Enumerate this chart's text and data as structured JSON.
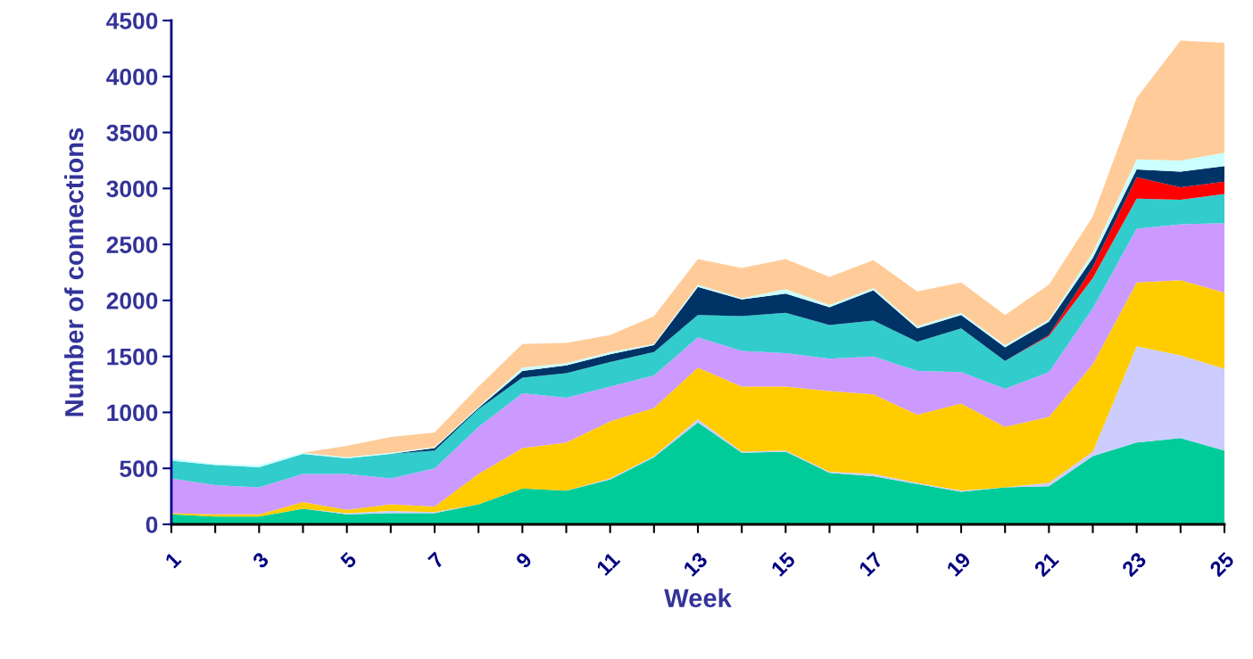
{
  "chart_data": {
    "type": "area",
    "stacked": true,
    "xlabel": "Week",
    "ylabel": "Number of connections",
    "categories": [
      "1",
      null,
      "3",
      null,
      "5",
      null,
      "7",
      null,
      "9",
      null,
      "11",
      null,
      "13",
      null,
      "15",
      null,
      "17",
      null,
      "19",
      null,
      "21",
      null,
      "23",
      null,
      "25"
    ],
    "ylim": [
      0,
      4500
    ],
    "yticks": [
      0,
      500,
      1000,
      1500,
      2000,
      2500,
      3000,
      3500,
      4000,
      4500
    ],
    "grid": false,
    "legend": false,
    "series": [
      {
        "color": "#00cc99",
        "values": [
          90,
          70,
          70,
          140,
          90,
          100,
          100,
          180,
          320,
          300,
          400,
          600,
          910,
          640,
          650,
          460,
          430,
          360,
          290,
          330,
          340,
          610,
          730,
          770,
          660
        ]
      },
      {
        "color": "#ccccff",
        "values": [
          0,
          0,
          0,
          0,
          10,
          20,
          10,
          0,
          0,
          0,
          10,
          10,
          30,
          10,
          10,
          10,
          20,
          10,
          10,
          0,
          30,
          40,
          860,
          740,
          730
        ]
      },
      {
        "color": "#ffcc00",
        "values": [
          10,
          20,
          20,
          60,
          30,
          60,
          50,
          270,
          360,
          430,
          510,
          430,
          460,
          580,
          570,
          720,
          710,
          610,
          780,
          540,
          590,
          780,
          570,
          670,
          680
        ]
      },
      {
        "color": "#cc99ff",
        "values": [
          310,
          260,
          240,
          250,
          320,
          230,
          340,
          420,
          490,
          400,
          310,
          290,
          270,
          320,
          300,
          290,
          340,
          390,
          280,
          340,
          400,
          500,
          480,
          500,
          620
        ]
      },
      {
        "color": "#33cccc",
        "values": [
          160,
          180,
          180,
          180,
          140,
          220,
          160,
          160,
          140,
          220,
          220,
          210,
          200,
          310,
          360,
          300,
          320,
          260,
          390,
          250,
          320,
          270,
          270,
          220,
          260
        ]
      },
      {
        "color": "#ff0000",
        "values": [
          0,
          0,
          0,
          0,
          0,
          0,
          0,
          0,
          0,
          0,
          0,
          0,
          0,
          0,
          0,
          0,
          0,
          0,
          0,
          0,
          10,
          100,
          190,
          110,
          110
        ]
      },
      {
        "color": "#003366",
        "values": [
          0,
          0,
          0,
          0,
          0,
          0,
          20,
          10,
          60,
          70,
          70,
          60,
          250,
          150,
          170,
          160,
          270,
          120,
          120,
          120,
          120,
          80,
          70,
          140,
          140
        ]
      },
      {
        "color": "#ccffff",
        "values": [
          20,
          10,
          20,
          10,
          10,
          10,
          10,
          10,
          30,
          20,
          20,
          10,
          20,
          10,
          40,
          20,
          20,
          20,
          20,
          20,
          20,
          50,
          90,
          100,
          120
        ]
      },
      {
        "color": "#ffcc99",
        "values": [
          0,
          0,
          0,
          0,
          100,
          140,
          130,
          180,
          210,
          180,
          150,
          250,
          230,
          270,
          270,
          250,
          250,
          310,
          270,
          270,
          310,
          320,
          550,
          1070,
          980
        ]
      }
    ]
  }
}
